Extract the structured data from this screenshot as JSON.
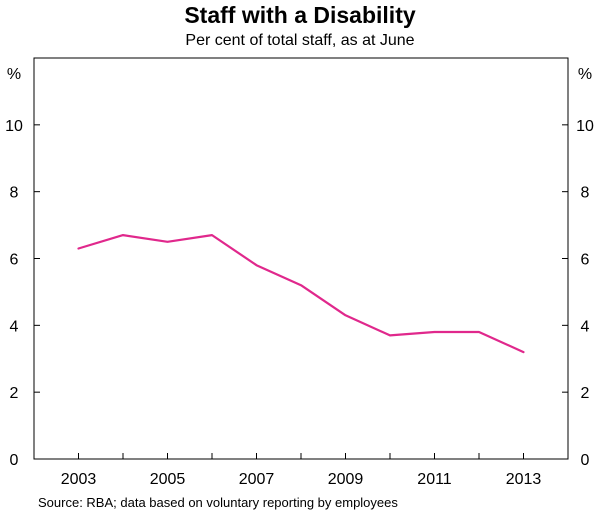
{
  "chart_data": {
    "type": "line",
    "title": "Staff with a Disability",
    "subtitle": "Per cent of total staff, as at June",
    "ylabel_left": "%",
    "ylabel_right": "%",
    "ylim": [
      0,
      12
    ],
    "yticks": [
      0,
      2,
      4,
      6,
      8,
      10
    ],
    "xlim": [
      2002,
      2014
    ],
    "xticks": [
      2003,
      2005,
      2007,
      2009,
      2011,
      2013
    ],
    "grid": false,
    "series": [
      {
        "color": "#e0288c",
        "x": [
          2003,
          2004,
          2005,
          2006,
          2007,
          2008,
          2009,
          2010,
          2011,
          2012,
          2013
        ],
        "values": [
          6.3,
          6.7,
          6.5,
          6.7,
          5.8,
          5.2,
          4.3,
          3.7,
          3.8,
          3.8,
          3.2
        ]
      }
    ],
    "source": "Source: RBA; data based on voluntary reporting by employees"
  }
}
